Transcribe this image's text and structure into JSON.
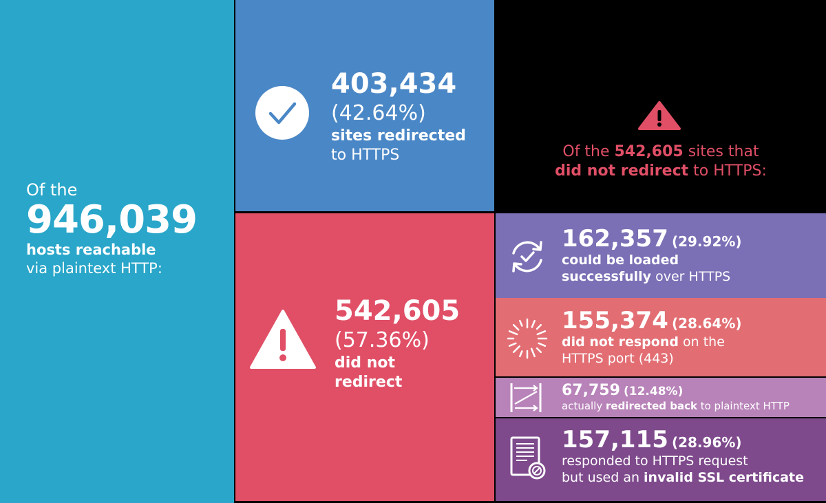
{
  "total": {
    "line1": "Of the",
    "number": "946,039",
    "line3": "hosts reachable",
    "line4": "via plaintext HTTP:"
  },
  "redirected": {
    "number": "403,434",
    "percent": "(42.64%)",
    "line1": "sites redirected",
    "line2": "to HTTPS",
    "icon": "checkmark-icon"
  },
  "not_redirected": {
    "number": "542,605",
    "percent": "(57.36%)",
    "line1": "did not",
    "line2": "redirect",
    "icon": "warning-icon"
  },
  "header": {
    "pre": "Of the ",
    "number": "542,605",
    "post": " sites that",
    "bold2": "did not redirect",
    "post2": " to HTTPS:",
    "icon": "warning-icon"
  },
  "breakdown": [
    {
      "number": "162,357",
      "percent": "(29.92%)",
      "bold": "could be loaded",
      "bold2": "successfully",
      "rest": " over HTTPS",
      "icon": "refresh-check-icon",
      "color": "#7b6fb5"
    },
    {
      "number": "155,374",
      "percent": "(28.64%)",
      "bold": "did not respond",
      "rest": " on the",
      "line2": "HTTPS port (443)",
      "icon": "loading-spinner-icon",
      "color": "#e26e73"
    },
    {
      "number": "67,759",
      "percent": "(12.48%)",
      "pre": "actually ",
      "bold": "redirected back",
      "rest": " to plaintext HTTP",
      "icon": "redirect-loop-icon",
      "color": "#b883b9"
    },
    {
      "number": "157,115",
      "percent": "(28.96%)",
      "line1": "responded to HTTPS request",
      "pre": "but used an ",
      "bold": "invalid SSL certificate",
      "icon": "certificate-icon",
      "color": "#7e4a8c"
    }
  ],
  "colors": {
    "cyan": "#29a6c9",
    "blue": "#4a87c6",
    "red": "#e04f66",
    "purple": "#7b6fb5",
    "salmon": "#e26e73",
    "lilac": "#b883b9",
    "plum": "#7e4a8c"
  }
}
